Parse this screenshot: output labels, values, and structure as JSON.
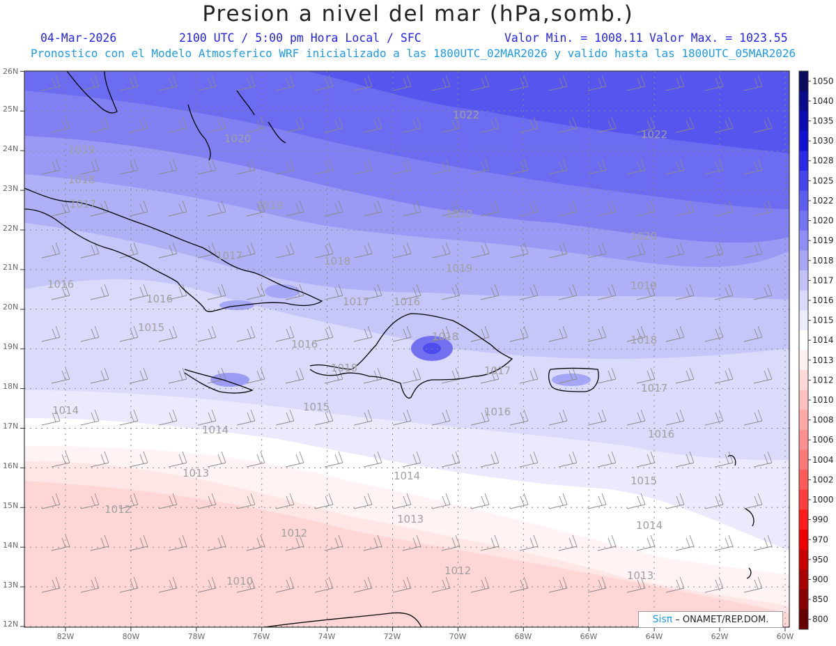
{
  "header": {
    "title": "Presion a nivel del mar (hPa,somb.)",
    "date": "04-Mar-2026",
    "time": "2100 UTC / 5:00 pm Hora Local / SFC",
    "min_label": "Valor Min. = 1008.11",
    "max_label": "Valor Max. = 1023.55",
    "model_info": "Pronostico con el Modelo Atmosferico WRF inicializado a las 1800UTC_02MAR2026 y valido hasta las  1800UTC_05MAR2026"
  },
  "credit": {
    "logo": "Sisπ",
    "text": " – ONAMET/REP.DOM."
  },
  "axes": {
    "lon_labels": [
      "82W",
      "80W",
      "78W",
      "76W",
      "74W",
      "72W",
      "70W",
      "68W",
      "66W",
      "64W",
      "62W",
      "60W"
    ],
    "lat_labels": [
      "12N",
      "13N",
      "14N",
      "15N",
      "16N",
      "17N",
      "18N",
      "19N",
      "20N",
      "21N",
      "22N",
      "23N",
      "24N",
      "25N",
      "26N"
    ]
  },
  "colorbar": {
    "levels": [
      "1050",
      "1040",
      "1035",
      "1030",
      "1028",
      "1025",
      "1022",
      "1020",
      "1019",
      "1018",
      "1017",
      "1016",
      "1015",
      "1014",
      "1013",
      "1012",
      "1010",
      "1008",
      "1006",
      "1004",
      "1002",
      "1000",
      "990",
      "970",
      "950",
      "900",
      "850",
      "800"
    ],
    "colors": [
      "#0b0b5e",
      "#0a0a8c",
      "#0c0cb4",
      "#1010d2",
      "#2a2ae6",
      "#4545ee",
      "#5c5cf0",
      "#7474f2",
      "#8e8ef4",
      "#a8a8f6",
      "#c2c2f8",
      "#dadafb",
      "#ececfd",
      "#ffffff",
      "#fff0f0",
      "#ffd8d8",
      "#ffc0c0",
      "#ffa8a8",
      "#ff9090",
      "#ff7878",
      "#ff5a5a",
      "#ff3c3c",
      "#ff1a1a",
      "#ee0000",
      "#cc0000",
      "#aa0000",
      "#880000",
      "#660000"
    ]
  },
  "contour_labels": [
    {
      "text": "1022"
    },
    {
      "text": "1022"
    },
    {
      "text": "1020"
    },
    {
      "text": "1020"
    },
    {
      "text": "1020"
    },
    {
      "text": "1019"
    },
    {
      "text": "1019"
    },
    {
      "text": "1019"
    },
    {
      "text": "1019"
    },
    {
      "text": "1018"
    },
    {
      "text": "1018"
    },
    {
      "text": "1018"
    },
    {
      "text": "1018"
    },
    {
      "text": "1018"
    },
    {
      "text": "1017"
    },
    {
      "text": "1017"
    },
    {
      "text": "1017"
    },
    {
      "text": "1017"
    },
    {
      "text": "1017"
    },
    {
      "text": "1016"
    },
    {
      "text": "1016"
    },
    {
      "text": "1016"
    },
    {
      "text": "1016"
    },
    {
      "text": "1016"
    },
    {
      "text": "1016"
    },
    {
      "text": "1015"
    },
    {
      "text": "1015"
    },
    {
      "text": "1015"
    },
    {
      "text": "1014"
    },
    {
      "text": "1014"
    },
    {
      "text": "1014"
    },
    {
      "text": "1014"
    },
    {
      "text": "1013"
    },
    {
      "text": "1013"
    },
    {
      "text": "1013"
    },
    {
      "text": "1012"
    },
    {
      "text": "1012"
    },
    {
      "text": "1012"
    },
    {
      "text": "1010"
    }
  ]
}
